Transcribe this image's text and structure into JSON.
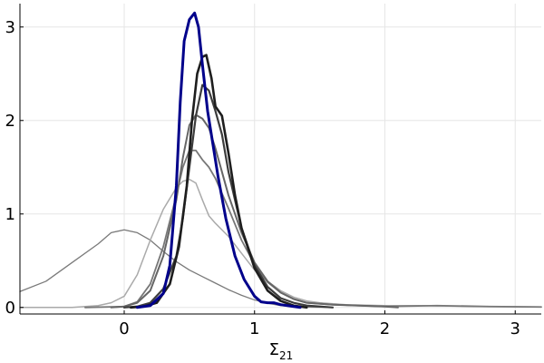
{
  "chart_data": {
    "type": "line",
    "title": "",
    "xlabel": "Σ",
    "xlabel_subscript": "21",
    "ylabel": "",
    "xlim": [
      -0.8,
      3.2
    ],
    "ylim": [
      -0.07,
      3.25
    ],
    "xticks": [
      {
        "value": 0,
        "label": "0"
      },
      {
        "value": 1,
        "label": "1"
      },
      {
        "value": 2,
        "label": "2"
      },
      {
        "value": 3,
        "label": "3"
      }
    ],
    "yticks": [
      {
        "value": 0,
        "label": "0"
      },
      {
        "value": 1,
        "label": "1"
      },
      {
        "value": 2,
        "label": "2"
      },
      {
        "value": 3,
        "label": "3"
      }
    ],
    "grid": true,
    "legend": "none",
    "series": [
      {
        "color": "#7a7a7a",
        "width": 1.3,
        "points": [
          [
            -0.8,
            0.17
          ],
          [
            -0.6,
            0.28
          ],
          [
            -0.4,
            0.48
          ],
          [
            -0.2,
            0.68
          ],
          [
            -0.1,
            0.8
          ],
          [
            0,
            0.83
          ],
          [
            0.1,
            0.8
          ],
          [
            0.2,
            0.72
          ],
          [
            0.3,
            0.6
          ],
          [
            0.4,
            0.49
          ],
          [
            0.5,
            0.4
          ],
          [
            0.6,
            0.33
          ],
          [
            0.7,
            0.26
          ],
          [
            0.8,
            0.19
          ],
          [
            0.9,
            0.13
          ],
          [
            1.0,
            0.08
          ],
          [
            1.1,
            0.045
          ],
          [
            1.2,
            0.02
          ],
          [
            1.3,
            0.008
          ],
          [
            1.4,
            0.003
          ],
          [
            1.6,
            0.001
          ]
        ]
      },
      {
        "color": "#aaaaaa",
        "width": 1.5,
        "points": [
          [
            -0.8,
            0
          ],
          [
            -0.4,
            0
          ],
          [
            -0.2,
            0.02
          ],
          [
            -0.1,
            0.05
          ],
          [
            0,
            0.12
          ],
          [
            0.1,
            0.35
          ],
          [
            0.2,
            0.72
          ],
          [
            0.3,
            1.05
          ],
          [
            0.4,
            1.28
          ],
          [
            0.45,
            1.35
          ],
          [
            0.5,
            1.37
          ],
          [
            0.55,
            1.33
          ],
          [
            0.6,
            1.15
          ],
          [
            0.65,
            0.98
          ],
          [
            0.7,
            0.9
          ],
          [
            0.8,
            0.76
          ],
          [
            0.9,
            0.58
          ],
          [
            1.0,
            0.4
          ],
          [
            1.1,
            0.28
          ],
          [
            1.2,
            0.18
          ],
          [
            1.3,
            0.11
          ],
          [
            1.4,
            0.07
          ],
          [
            1.5,
            0.05
          ],
          [
            1.7,
            0.03
          ],
          [
            2.0,
            0.02
          ],
          [
            2.3,
            0.02
          ],
          [
            2.7,
            0.01
          ],
          [
            3.2,
            0.005
          ]
        ]
      },
      {
        "color": "#777777",
        "width": 1.8,
        "points": [
          [
            -0.3,
            0
          ],
          [
            0,
            0.01
          ],
          [
            0.1,
            0.06
          ],
          [
            0.2,
            0.25
          ],
          [
            0.3,
            0.65
          ],
          [
            0.4,
            1.2
          ],
          [
            0.45,
            1.5
          ],
          [
            0.5,
            1.68
          ],
          [
            0.55,
            1.68
          ],
          [
            0.6,
            1.58
          ],
          [
            0.65,
            1.5
          ],
          [
            0.7,
            1.38
          ],
          [
            0.8,
            1.06
          ],
          [
            0.9,
            0.72
          ],
          [
            1.0,
            0.46
          ],
          [
            1.1,
            0.27
          ],
          [
            1.2,
            0.16
          ],
          [
            1.3,
            0.09
          ],
          [
            1.4,
            0.05
          ],
          [
            1.6,
            0.03
          ],
          [
            1.8,
            0.02
          ],
          [
            2.0,
            0.01
          ],
          [
            2.4,
            0.02
          ],
          [
            2.8,
            0.01
          ],
          [
            3.2,
            0.005
          ]
        ]
      },
      {
        "color": "#666666",
        "width": 2.0,
        "points": [
          [
            -0.1,
            0
          ],
          [
            0,
            0.01
          ],
          [
            0.1,
            0.05
          ],
          [
            0.2,
            0.18
          ],
          [
            0.3,
            0.55
          ],
          [
            0.4,
            1.15
          ],
          [
            0.45,
            1.6
          ],
          [
            0.5,
            1.95
          ],
          [
            0.55,
            2.06
          ],
          [
            0.6,
            2.02
          ],
          [
            0.65,
            1.92
          ],
          [
            0.7,
            1.7
          ],
          [
            0.8,
            1.2
          ],
          [
            0.9,
            0.8
          ],
          [
            1.0,
            0.48
          ],
          [
            1.1,
            0.28
          ],
          [
            1.2,
            0.16
          ],
          [
            1.3,
            0.09
          ],
          [
            1.4,
            0.05
          ],
          [
            1.6,
            0.03
          ],
          [
            1.8,
            0.02
          ],
          [
            2.0,
            0.01
          ],
          [
            2.1,
            0.0
          ]
        ]
      },
      {
        "color": "#3c3c3c",
        "width": 2.2,
        "points": [
          [
            0,
            0
          ],
          [
            0.1,
            0.01
          ],
          [
            0.2,
            0.05
          ],
          [
            0.3,
            0.2
          ],
          [
            0.4,
            0.55
          ],
          [
            0.45,
            0.95
          ],
          [
            0.5,
            1.5
          ],
          [
            0.55,
            2.05
          ],
          [
            0.6,
            2.38
          ],
          [
            0.65,
            2.32
          ],
          [
            0.7,
            2.1
          ],
          [
            0.75,
            1.85
          ],
          [
            0.8,
            1.45
          ],
          [
            0.9,
            0.85
          ],
          [
            1.0,
            0.45
          ],
          [
            1.1,
            0.22
          ],
          [
            1.2,
            0.1
          ],
          [
            1.3,
            0.05
          ],
          [
            1.4,
            0.02
          ],
          [
            1.5,
            0.01
          ],
          [
            1.6,
            0
          ]
        ]
      },
      {
        "color": "#1e1e1e",
        "width": 2.6,
        "points": [
          [
            0.05,
            0
          ],
          [
            0.15,
            0.01
          ],
          [
            0.25,
            0.05
          ],
          [
            0.35,
            0.25
          ],
          [
            0.42,
            0.65
          ],
          [
            0.48,
            1.3
          ],
          [
            0.52,
            2.0
          ],
          [
            0.56,
            2.5
          ],
          [
            0.6,
            2.68
          ],
          [
            0.63,
            2.7
          ],
          [
            0.67,
            2.45
          ],
          [
            0.7,
            2.15
          ],
          [
            0.75,
            2.05
          ],
          [
            0.8,
            1.65
          ],
          [
            0.85,
            1.2
          ],
          [
            0.9,
            0.85
          ],
          [
            1.0,
            0.42
          ],
          [
            1.1,
            0.18
          ],
          [
            1.2,
            0.07
          ],
          [
            1.3,
            0.02
          ],
          [
            1.4,
            0
          ]
        ]
      },
      {
        "color": "#00008b",
        "width": 3.0,
        "points": [
          [
            0.1,
            0
          ],
          [
            0.2,
            0.02
          ],
          [
            0.3,
            0.15
          ],
          [
            0.35,
            0.45
          ],
          [
            0.4,
            1.3
          ],
          [
            0.43,
            2.2
          ],
          [
            0.46,
            2.85
          ],
          [
            0.5,
            3.08
          ],
          [
            0.54,
            3.15
          ],
          [
            0.57,
            3.0
          ],
          [
            0.6,
            2.6
          ],
          [
            0.64,
            2.1
          ],
          [
            0.68,
            1.75
          ],
          [
            0.72,
            1.4
          ],
          [
            0.78,
            0.95
          ],
          [
            0.85,
            0.55
          ],
          [
            0.92,
            0.3
          ],
          [
            1.0,
            0.12
          ],
          [
            1.05,
            0.06
          ],
          [
            1.1,
            0.05
          ],
          [
            1.15,
            0.05
          ],
          [
            1.2,
            0.03
          ],
          [
            1.3,
            0.01
          ],
          [
            1.35,
            0
          ]
        ]
      }
    ]
  }
}
